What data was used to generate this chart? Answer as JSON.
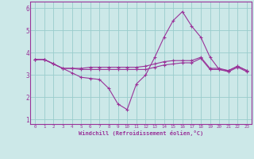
{
  "xlabel": "Windchill (Refroidissement éolien,°C)",
  "bg_color": "#cce8e8",
  "grid_color": "#99cccc",
  "line_color": "#993399",
  "x_ticks": [
    0,
    1,
    2,
    3,
    4,
    5,
    6,
    7,
    8,
    9,
    10,
    11,
    12,
    13,
    14,
    15,
    16,
    17,
    18,
    19,
    20,
    21,
    22,
    23
  ],
  "ylim": [
    0.8,
    6.3
  ],
  "xlim": [
    -0.5,
    23.5
  ],
  "line1_x": [
    0,
    1,
    2,
    3,
    4,
    5,
    6,
    7,
    8,
    9,
    10,
    11,
    12,
    13,
    14,
    15,
    16,
    17,
    18,
    19,
    20,
    21,
    22,
    23
  ],
  "line1_y": [
    3.7,
    3.7,
    3.5,
    3.3,
    3.1,
    2.9,
    2.85,
    2.8,
    2.4,
    1.7,
    1.45,
    2.6,
    3.0,
    3.8,
    4.7,
    5.45,
    5.85,
    5.2,
    4.7,
    3.8,
    3.25,
    3.2,
    3.4,
    3.2
  ],
  "line2_x": [
    0,
    1,
    2,
    3,
    4,
    5,
    6,
    7,
    8,
    9,
    10,
    11,
    12,
    13,
    14,
    15,
    16,
    17,
    18,
    19,
    20,
    21,
    22,
    23
  ],
  "line2_y": [
    3.7,
    3.7,
    3.5,
    3.3,
    3.3,
    3.3,
    3.35,
    3.35,
    3.35,
    3.35,
    3.35,
    3.35,
    3.4,
    3.5,
    3.6,
    3.65,
    3.65,
    3.65,
    3.8,
    3.3,
    3.3,
    3.2,
    3.4,
    3.2
  ],
  "line3_x": [
    0,
    1,
    2,
    3,
    4,
    5,
    6,
    7,
    8,
    9,
    10,
    11,
    12,
    13,
    14,
    15,
    16,
    17,
    18,
    19,
    20,
    21,
    22,
    23
  ],
  "line3_y": [
    3.7,
    3.7,
    3.5,
    3.3,
    3.3,
    3.25,
    3.25,
    3.25,
    3.25,
    3.25,
    3.25,
    3.25,
    3.25,
    3.35,
    3.45,
    3.5,
    3.55,
    3.55,
    3.75,
    3.25,
    3.25,
    3.15,
    3.35,
    3.15
  ],
  "yticks": [
    1,
    2,
    3,
    4,
    5,
    6
  ]
}
